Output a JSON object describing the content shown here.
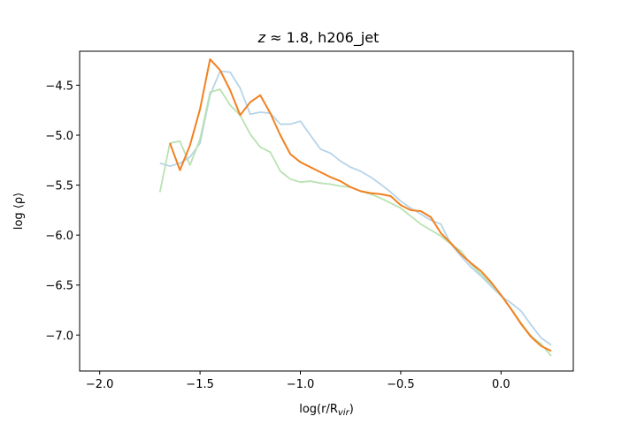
{
  "chart_data": {
    "type": "line",
    "title": "z ≈ 1.8, h206_jet",
    "title_parts": {
      "var": "z",
      "rel": " ≈ 1.8, h206_jet"
    },
    "xlabel": "log(r/R",
    "xlabel_sub": "vir",
    "xlabel_end": ")",
    "ylabel": "log ⟨ρ⟩",
    "xlim": [
      -2.1,
      0.36
    ],
    "ylim": [
      -7.36,
      -4.16
    ],
    "xticks": [
      -2.0,
      -1.5,
      -1.0,
      -0.5,
      0.0
    ],
    "xtick_labels": [
      "−2.0",
      "−1.5",
      "−1.0",
      "−0.5",
      "0.0"
    ],
    "yticks": [
      -4.5,
      -5.0,
      -5.5,
      -6.0,
      -6.5,
      -7.0
    ],
    "ytick_labels": [
      "−4.5",
      "−5.0",
      "−5.5",
      "−6.0",
      "−6.5",
      "−7.0"
    ],
    "grid": false,
    "series": [
      {
        "color": "#b6d4e9",
        "x": [
          -1.7,
          -1.65,
          -1.6,
          -1.55,
          -1.5,
          -1.45,
          -1.4,
          -1.35,
          -1.3,
          -1.25,
          -1.2,
          -1.15,
          -1.1,
          -1.05,
          -1.0,
          -0.95,
          -0.9,
          -0.85,
          -0.8,
          -0.75,
          -0.7,
          -0.65,
          -0.6,
          -0.55,
          -0.5,
          -0.45,
          -0.4,
          -0.35,
          -0.3,
          -0.25,
          -0.2,
          -0.15,
          -0.1,
          -0.05,
          0.0,
          0.05,
          0.1,
          0.15,
          0.2,
          0.25
        ],
        "y": [
          -5.28,
          -5.31,
          -5.28,
          -5.22,
          -5.08,
          -4.6,
          -4.36,
          -4.37,
          -4.53,
          -4.79,
          -4.77,
          -4.78,
          -4.89,
          -4.89,
          -4.86,
          -5.0,
          -5.14,
          -5.18,
          -5.26,
          -5.32,
          -5.36,
          -5.42,
          -5.49,
          -5.57,
          -5.66,
          -5.73,
          -5.79,
          -5.85,
          -5.89,
          -6.09,
          -6.21,
          -6.32,
          -6.41,
          -6.51,
          -6.61,
          -6.68,
          -6.76,
          -6.9,
          -7.03,
          -7.1
        ]
      },
      {
        "color": "#b9e2b2",
        "x": [
          -1.7,
          -1.65,
          -1.6,
          -1.55,
          -1.5,
          -1.45,
          -1.4,
          -1.35,
          -1.3,
          -1.25,
          -1.2,
          -1.15,
          -1.1,
          -1.05,
          -1.0,
          -0.95,
          -0.9,
          -0.85,
          -0.8,
          -0.75,
          -0.7,
          -0.65,
          -0.6,
          -0.55,
          -0.5,
          -0.45,
          -0.4,
          -0.35,
          -0.3,
          -0.25,
          -0.2,
          -0.15,
          -0.1,
          -0.05,
          0.0,
          0.05,
          0.1,
          0.15,
          0.2,
          0.25
        ],
        "y": [
          -5.57,
          -5.08,
          -5.06,
          -5.3,
          -5.04,
          -4.57,
          -4.54,
          -4.7,
          -4.8,
          -4.99,
          -5.12,
          -5.17,
          -5.36,
          -5.44,
          -5.47,
          -5.46,
          -5.48,
          -5.49,
          -5.51,
          -5.52,
          -5.56,
          -5.59,
          -5.63,
          -5.68,
          -5.73,
          -5.81,
          -5.89,
          -5.95,
          -6.01,
          -6.09,
          -6.16,
          -6.29,
          -6.39,
          -6.49,
          -6.6,
          -6.74,
          -6.88,
          -7.01,
          -7.09,
          -7.21
        ]
      },
      {
        "color": "#f28020",
        "x": [
          -1.65,
          -1.6,
          -1.55,
          -1.5,
          -1.45,
          -1.4,
          -1.35,
          -1.3,
          -1.25,
          -1.2,
          -1.15,
          -1.1,
          -1.05,
          -1.0,
          -0.95,
          -0.9,
          -0.85,
          -0.8,
          -0.75,
          -0.7,
          -0.65,
          -0.6,
          -0.55,
          -0.5,
          -0.45,
          -0.4,
          -0.35,
          -0.3,
          -0.25,
          -0.2,
          -0.15,
          -0.1,
          -0.05,
          0.0,
          0.05,
          0.1,
          0.15,
          0.2,
          0.25
        ],
        "y": [
          -5.08,
          -5.35,
          -5.1,
          -4.74,
          -4.24,
          -4.35,
          -4.55,
          -4.8,
          -4.67,
          -4.6,
          -4.78,
          -5.0,
          -5.19,
          -5.27,
          -5.32,
          -5.37,
          -5.42,
          -5.46,
          -5.52,
          -5.56,
          -5.58,
          -5.59,
          -5.61,
          -5.7,
          -5.75,
          -5.76,
          -5.82,
          -5.98,
          -6.08,
          -6.19,
          -6.28,
          -6.36,
          -6.47,
          -6.6,
          -6.74,
          -6.89,
          -7.02,
          -7.11,
          -7.16
        ]
      }
    ]
  }
}
